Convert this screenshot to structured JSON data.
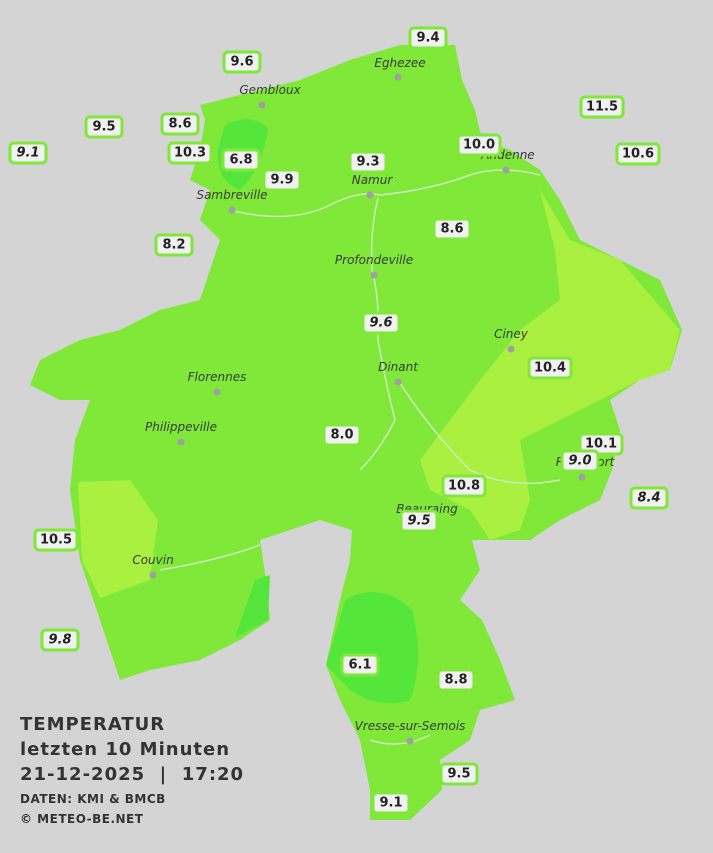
{
  "legend": {
    "title": "TEMPERATUR",
    "subtitle": "letzten 10 Minuten",
    "timestamp": "21-12-2025  |  17:20",
    "source": "DATEN: KMI & BMCB",
    "copyright": "© METEO-BE.NET"
  },
  "towns": [
    "Eghezee",
    "Gembloux",
    "Andenne",
    "Namur",
    "Sambreville",
    "Profondeville",
    "Ciney",
    "Dinant",
    "Florennes",
    "Philippeville",
    "Rochefort",
    "Beauraing",
    "Couvin",
    "Vresse-sur-Semois"
  ],
  "stations": [
    "9.4",
    "9.6",
    "11.5",
    "9.5",
    "8.6",
    "10.3",
    "6.8",
    "9.9",
    "9.3",
    "10.0",
    "10.6",
    "9.1",
    "8.2",
    "8.6",
    "9.6",
    "10.4",
    "8.0",
    "10.1",
    "9.0",
    "10.8",
    "8.4",
    "9.5",
    "10.5",
    "9.8",
    "6.1",
    "8.8",
    "9.5",
    "9.1"
  ]
}
